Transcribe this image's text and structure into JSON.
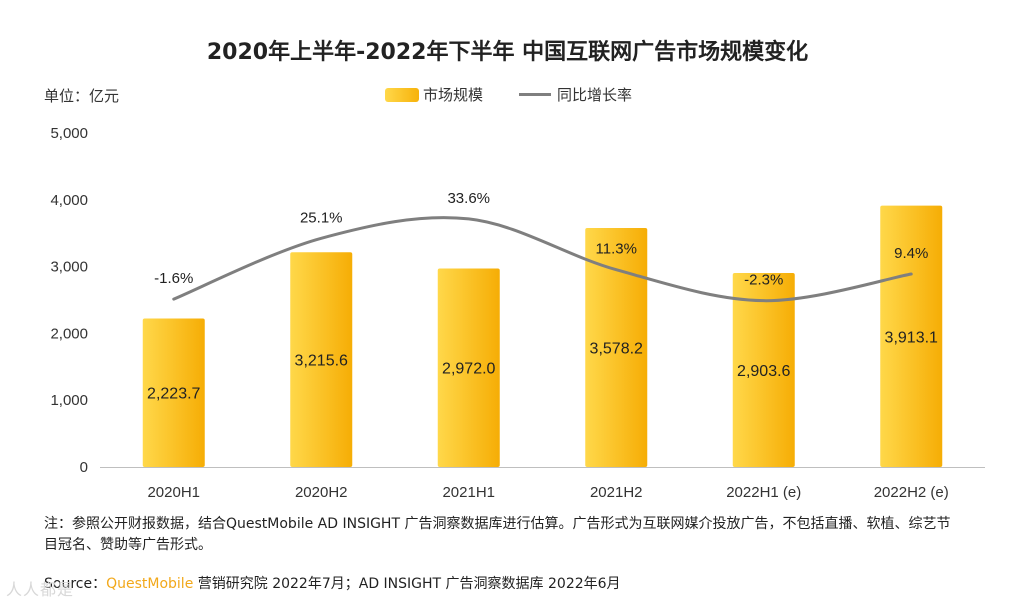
{
  "chart_data": {
    "type": "bar",
    "title": "2020年上半年-2022年下半年 中国互联网广告市场规模变化",
    "unit_label": "单位：亿元",
    "categories": [
      "2020H1",
      "2020H2",
      "2021H1",
      "2021H2",
      "2022H1 (e)",
      "2022H2 (e)"
    ],
    "series": [
      {
        "name": "市场规模",
        "type": "bar",
        "values": [
          2223.7,
          3215.6,
          2972.0,
          3578.2,
          2903.6,
          3913.1
        ],
        "labels": [
          "2,223.7",
          "3,215.6",
          "2,972.0",
          "3,578.2",
          "2,903.6",
          "3,913.1"
        ],
        "color": "#f7b20a"
      },
      {
        "name": "同比增长率",
        "type": "line",
        "values": [
          -1.6,
          25.1,
          33.6,
          11.3,
          -2.3,
          9.4
        ],
        "labels": [
          "-1.6%",
          "25.1%",
          "33.6%",
          "11.3%",
          "-2.3%",
          "9.4%"
        ],
        "color": "#7f7f7f"
      }
    ],
    "ylim": [
      0,
      5000
    ],
    "yticks": [
      "0",
      "1,000",
      "2,000",
      "3,000",
      "4,000",
      "5,000"
    ],
    "ytick_values": [
      0,
      1000,
      2000,
      3000,
      4000,
      5000
    ],
    "xlabel": "",
    "ylabel": ""
  },
  "note": "注：参照公开财报数据，结合QuestMobile AD INSIGHT 广告洞察数据库进行估算。广告形式为互联网媒介投放广告，不包括直播、软植、综艺节目冠名、赞助等广告形式。",
  "source": {
    "prefix": "Source：",
    "brand": "QuestMobile",
    "rest": " 营销研究院 2022年7月；AD INSIGHT 广告洞察数据库 2022年6月"
  },
  "watermark": "人人都是"
}
